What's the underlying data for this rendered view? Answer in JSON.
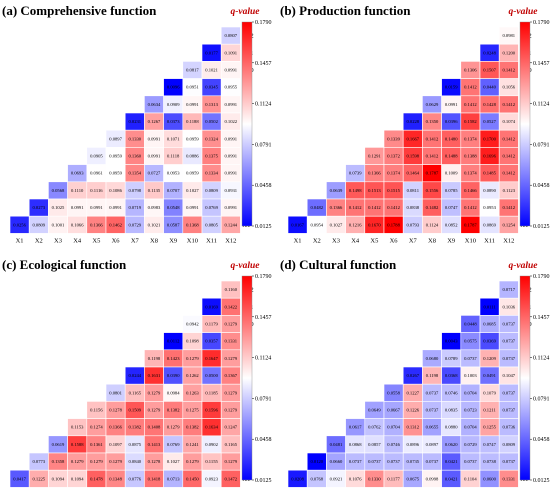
{
  "colorbar": {
    "title": "q-value",
    "ticks": [
      "0.1790",
      "0.1457",
      "0.1124",
      "0.0791",
      "0.0458",
      "0.0125"
    ],
    "min": 0.0125,
    "max": 0.179,
    "colors": {
      "low": "#0000ff",
      "mid": "#ffffff",
      "high": "#ff0000"
    }
  },
  "axis_labels": [
    "X1",
    "X2",
    "X3",
    "X4",
    "X5",
    "X6",
    "X7",
    "X8",
    "X9",
    "X10",
    "X11",
    "X12"
  ],
  "chart_data": [
    {
      "type": "heatmap",
      "title": "(a) Comprehensive function",
      "rows": [
        [
          "0.0807"
        ],
        [
          "0.0177",
          "0.1091"
        ],
        [
          "0.0817",
          "0.1021",
          "0.0991"
        ],
        [
          "0.0096",
          "0.0951",
          "0.0345",
          "0.0955"
        ],
        [
          "0.0634",
          "0.0909",
          "0.0991",
          "0.1313",
          "0.0991"
        ],
        [
          "0.0231",
          "0.1267",
          "0.0373",
          "0.1188",
          "0.0502",
          "0.1022"
        ],
        [
          "0.0897",
          "0.1330",
          "0.0991",
          "0.1071",
          "0.0959",
          "0.1324",
          "0.0991"
        ],
        [
          "0.0905",
          "0.0959",
          "0.1360",
          "0.0991",
          "0.1118",
          "0.0886",
          "0.1375",
          "0.0991"
        ],
        [
          "0.0693",
          "0.0961",
          "0.0959",
          "0.1354",
          "0.0727",
          "0.0953",
          "0.0959",
          "0.1334",
          "0.0991"
        ],
        [
          "0.0568",
          "0.1110",
          "0.1116",
          "0.1086",
          "0.0798",
          "0.1135",
          "0.0707",
          "0.1027",
          "0.0809",
          "0.0931"
        ],
        [
          "0.0273",
          "0.1025",
          "0.0991",
          "0.0991",
          "0.0991",
          "0.0719",
          "0.0983",
          "0.0548",
          "0.0991",
          "0.0769",
          "0.0991"
        ],
        [
          "0.0256",
          "0.0809",
          "0.1001",
          "0.1066",
          "0.1366",
          "0.1462",
          "0.0729",
          "0.1021",
          "0.0587",
          "0.1368",
          "0.0805",
          "0.1244"
        ]
      ]
    },
    {
      "type": "heatmap",
      "title": "(b) Production function",
      "rows": [
        [
          "0.0981"
        ],
        [
          "0.0248",
          "0.1200"
        ],
        [
          "0.1306",
          "0.1507",
          "0.1412"
        ],
        [
          "0.0159",
          "0.1412",
          "0.0440",
          "0.1056"
        ],
        [
          "0.0629",
          "0.0991",
          "0.1412",
          "0.1428",
          "0.1412"
        ],
        [
          "0.0228",
          "0.1350",
          "0.0396",
          "0.1582",
          "0.0527",
          "0.1074"
        ],
        [
          "0.1339",
          "0.1667",
          "0.1412",
          "0.1480",
          "0.1374",
          "0.1700",
          "0.1412"
        ],
        [
          "0.1291",
          "0.1372",
          "0.1598",
          "0.1412",
          "0.1488",
          "0.1388",
          "0.1696",
          "0.1412"
        ],
        [
          "0.0739",
          "0.1366",
          "0.1374",
          "0.1464",
          "0.1787",
          "0.1009",
          "0.1374",
          "0.1485",
          "0.1412"
        ],
        [
          "0.0639",
          "0.1498",
          "0.1513",
          "0.1515",
          "0.0811",
          "0.1556",
          "0.0785",
          "0.1466",
          "0.0890",
          "0.1123"
        ],
        [
          "0.0482",
          "0.1366",
          "0.1412",
          "0.1412",
          "0.1412",
          "0.0838",
          "0.1482",
          "0.0747",
          "0.1412",
          "0.0953",
          "0.1412"
        ],
        [
          "0.0167",
          "0.0954",
          "0.1027",
          "0.1216",
          "0.1670",
          "0.1788",
          "0.0793",
          "0.1124",
          "0.0852",
          "0.1787",
          "0.0869",
          "0.1254"
        ]
      ]
    },
    {
      "type": "heatmap",
      "title": "(c) Ecological function",
      "rows": [
        [
          "0.1160"
        ],
        [
          "0.0169",
          "0.1422"
        ],
        [
          "0.0942",
          "0.1179",
          "0.1279"
        ],
        [
          "0.0112",
          "0.1098",
          "0.0357",
          "0.1331"
        ],
        [
          "0.1198",
          "0.1423",
          "0.1279",
          "0.1647",
          "0.1279"
        ],
        [
          "0.0244",
          "0.1631",
          "0.0390",
          "0.1262",
          "0.0500",
          "0.1367"
        ],
        [
          "0.0801",
          "0.1165",
          "0.1279",
          "0.0984",
          "0.1263",
          "0.1185",
          "0.1279"
        ],
        [
          "0.1156",
          "0.1278",
          "0.1509",
          "0.1279",
          "0.1382",
          "0.1275",
          "0.1596",
          "0.1279"
        ],
        [
          "0.1153",
          "0.1274",
          "0.1366",
          "0.1382",
          "0.1408",
          "0.1279",
          "0.1382",
          "0.1634",
          "0.1247"
        ],
        [
          "0.0619",
          "0.1588",
          "0.1361",
          "0.1097",
          "0.0875",
          "0.1413",
          "0.0769",
          "0.1241",
          "0.0902",
          "0.1165"
        ],
        [
          "0.0773",
          "0.1358",
          "0.1279",
          "0.1279",
          "0.1279",
          "0.0840",
          "0.1278",
          "0.1027",
          "0.1279",
          "0.1155",
          "0.1279"
        ],
        [
          "0.0417",
          "0.1225",
          "0.1094",
          "0.1094",
          "0.1478",
          "0.1348",
          "0.0776",
          "0.1418",
          "0.0713",
          "0.1450",
          "0.0923",
          "0.1472"
        ]
      ]
    },
    {
      "type": "heatmap",
      "title": "(d) Cultural function",
      "rows": [
        [
          "0.0717"
        ],
        [
          "0.0111",
          "0.1036"
        ],
        [
          "0.0448",
          "0.0685",
          "0.0737"
        ],
        [
          "0.0043",
          "0.0575",
          "0.0369",
          "0.0737"
        ],
        [
          "0.0680",
          "0.0789",
          "0.0737",
          "0.1209",
          "0.0737"
        ],
        [
          "0.0267",
          "0.1198",
          "0.0368",
          "0.1003",
          "0.0491",
          "0.1047"
        ],
        [
          "0.0558",
          "0.1227",
          "0.0737",
          "0.0746",
          "0.0704",
          "0.1079",
          "0.0737"
        ],
        [
          "0.0649",
          "0.0667",
          "0.1226",
          "0.0737",
          "0.0835",
          "0.0723",
          "0.1211",
          "0.0737"
        ],
        [
          "0.0617",
          "0.0762",
          "0.0704",
          "0.1312",
          "0.0655",
          "0.0880",
          "0.0704",
          "0.1255",
          "0.0736"
        ],
        [
          "0.0481",
          "0.0868",
          "0.0857",
          "0.0746",
          "0.0896",
          "0.0897",
          "0.0620",
          "0.0729",
          "0.0747",
          "0.0809"
        ],
        [
          "0.0120",
          "0.0660",
          "0.0737",
          "0.0737",
          "0.0737",
          "0.0735",
          "0.0737",
          "0.0421",
          "0.0737",
          "0.0738",
          "0.0737"
        ],
        [
          "0.0208",
          "0.0768",
          "0.0921",
          "0.1076",
          "0.1330",
          "0.1177",
          "0.0675",
          "0.0998",
          "0.0421",
          "0.1104",
          "0.0600",
          "0.1331"
        ]
      ]
    }
  ]
}
